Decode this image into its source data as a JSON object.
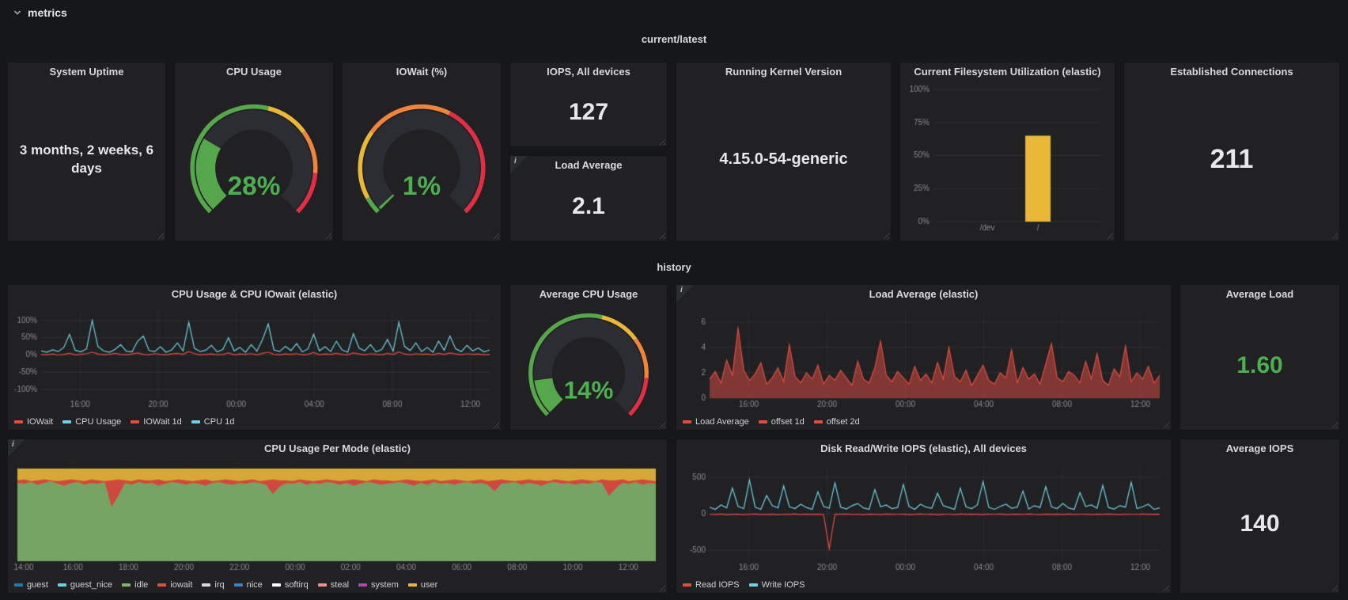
{
  "header": {
    "label": "metrics"
  },
  "sections": {
    "current": "current/latest",
    "history": "history"
  },
  "icons": {
    "info": "i"
  },
  "colors": {
    "background": "#161719",
    "panel": "#212124",
    "title": "#d8d9da",
    "stat": "#e8e8ea",
    "green": "#4CAF50",
    "gauge_green": "#56A64B",
    "yellow": "#EAB839",
    "orange": "#EF843C",
    "red": "#E02F44",
    "graph_red": "#E24D42",
    "graph_blue": "#6ED0E0"
  },
  "panels": {
    "uptime": {
      "title": "System Uptime",
      "value": "3 months, 2 weeks, 6 days"
    },
    "cpu_gauge": {
      "title": "CPU Usage"
    },
    "iowait_gauge": {
      "title": "IOWait (%)"
    },
    "iops": {
      "title": "IOPS, All devices",
      "value": "127"
    },
    "load_avg": {
      "title": "Load Average",
      "value": "2.1"
    },
    "kernel": {
      "title": "Running Kernel Version",
      "value": "4.15.0-54-generic"
    },
    "fs_util": {
      "title": "Current Filesystem Utilization (elastic)"
    },
    "connections": {
      "title": "Established Connections",
      "value": "211"
    },
    "cpu_history": {
      "title": "CPU Usage & CPU IOwait (elastic)"
    },
    "avg_cpu_gauge": {
      "title": "Average CPU Usage"
    },
    "load_history": {
      "title": "Load Average (elastic)"
    },
    "avg_load": {
      "title": "Average Load",
      "value": "1.60"
    },
    "cpu_mode": {
      "title": "CPU Usage Per Mode (elastic)"
    },
    "disk_iops": {
      "title": "Disk Read/Write IOPS (elastic), All devices"
    },
    "avg_iops": {
      "title": "Average IOPS",
      "value": "140"
    }
  },
  "gauges": {
    "cpu": {
      "value": 28,
      "display": "28%",
      "min": 0,
      "max": 100,
      "segments": [
        {
          "to": 0.55,
          "color": "#56A64B"
        },
        {
          "to": 0.7,
          "color": "#EAB839"
        },
        {
          "to": 0.85,
          "color": "#EF843C"
        },
        {
          "to": 1,
          "color": "#E02F44"
        }
      ]
    },
    "iowait": {
      "value": 1,
      "display": "1%",
      "min": 0,
      "max": 100,
      "segments": [
        {
          "to": 0.06,
          "color": "#56A64B"
        },
        {
          "to": 0.3,
          "color": "#EAB839"
        },
        {
          "to": 0.6,
          "color": "#EF843C"
        },
        {
          "to": 1,
          "color": "#E02F44"
        }
      ]
    },
    "avg_cpu": {
      "value": 14,
      "display": "14%",
      "min": 0,
      "max": 100,
      "segments": [
        {
          "to": 0.55,
          "color": "#56A64B"
        },
        {
          "to": 0.7,
          "color": "#EAB839"
        },
        {
          "to": 0.85,
          "color": "#EF843C"
        },
        {
          "to": 1,
          "color": "#E02F44"
        }
      ]
    }
  },
  "chart_data": {
    "fs_util": {
      "type": "bar",
      "title": "Current Filesystem Utilization (elastic)",
      "categories": [
        "/dev",
        "/"
      ],
      "values": [
        0,
        65
      ],
      "cat_pos": [
        0.32,
        0.62
      ],
      "y_ticks": [
        "0%",
        "25%",
        "50%",
        "75%",
        "100%"
      ],
      "y_tick_values": [
        0,
        25,
        50,
        75,
        100
      ],
      "ylim": [
        0,
        100
      ],
      "bar_color": "#EAB839"
    },
    "cpu_history": {
      "type": "line",
      "title": "CPU Usage & CPU IOwait (elastic)",
      "x_ticks": [
        "16:00",
        "20:00",
        "00:00",
        "04:00",
        "08:00",
        "12:00"
      ],
      "x_tick_pos": [
        0.087,
        0.261,
        0.435,
        0.609,
        0.783,
        0.957
      ],
      "y_ticks": [
        "100%",
        "50%",
        "0%",
        "-50%",
        "-100%"
      ],
      "y_tick_values": [
        100,
        50,
        0,
        -50,
        -100
      ],
      "ylim": [
        -125,
        125
      ],
      "series": [
        {
          "name": "IOWait",
          "color": "#E24D42",
          "fill": 0,
          "values": [
            2,
            1,
            3,
            0,
            2,
            5,
            1,
            2,
            4,
            8,
            3,
            1,
            2,
            5,
            2,
            1,
            3,
            6,
            2,
            1,
            4,
            2,
            1,
            3,
            5,
            2,
            10,
            4,
            1,
            2,
            3,
            1,
            2,
            6,
            1,
            3,
            2,
            4,
            1,
            5,
            8,
            2,
            1,
            3,
            2,
            4,
            1,
            2,
            7,
            1,
            3,
            2,
            5,
            2,
            1,
            6,
            3,
            1,
            4,
            2,
            1,
            5,
            2,
            9,
            3,
            1,
            4,
            2,
            3,
            1,
            5,
            2,
            6,
            3,
            1,
            4,
            2,
            3,
            1,
            2
          ]
        },
        {
          "name": "CPU Usage",
          "color": "#6ED0E0",
          "fill": 0,
          "values": [
            12,
            8,
            15,
            10,
            22,
            60,
            14,
            9,
            18,
            100,
            25,
            12,
            8,
            16,
            30,
            11,
            9,
            40,
            55,
            13,
            10,
            24,
            8,
            15,
            35,
            12,
            95,
            20,
            10,
            14,
            28,
            9,
            16,
            50,
            12,
            22,
            8,
            30,
            11,
            45,
            90,
            15,
            10,
            25,
            13,
            33,
            9,
            18,
            60,
            12,
            24,
            10,
            40,
            15,
            8,
            62,
            20,
            12,
            30,
            9,
            16,
            45,
            11,
            95,
            25,
            13,
            35,
            10,
            22,
            8,
            40,
            14,
            55,
            18,
            10,
            28,
            12,
            20,
            9,
            15
          ]
        }
      ],
      "legend": [
        {
          "label": "IOWait",
          "color": "#E24D42"
        },
        {
          "label": "CPU Usage",
          "color": "#6ED0E0"
        },
        {
          "label": "IOWait 1d",
          "color": "#E24D42"
        },
        {
          "label": "CPU 1d",
          "color": "#6ED0E0"
        }
      ]
    },
    "load_history": {
      "type": "area",
      "title": "Load Average (elastic)",
      "x_ticks": [
        "16:00",
        "20:00",
        "00:00",
        "04:00",
        "08:00",
        "12:00"
      ],
      "x_tick_pos": [
        0.087,
        0.261,
        0.435,
        0.609,
        0.783,
        0.957
      ],
      "y_ticks": [
        "0",
        "2",
        "4",
        "6"
      ],
      "y_tick_values": [
        0,
        2,
        4,
        6
      ],
      "ylim": [
        0,
        6.8
      ],
      "series": [
        {
          "name": "Load Average",
          "color": "#E24D42",
          "fill": 0.5,
          "values": [
            1.5,
            2.1,
            1.2,
            3.0,
            1.8,
            5.5,
            2.2,
            1.4,
            1.9,
            2.8,
            1.1,
            1.6,
            2.4,
            1.3,
            4.2,
            1.7,
            1.2,
            2.0,
            1.5,
            2.6,
            1.1,
            1.8,
            1.4,
            2.2,
            1.6,
            1.0,
            2.9,
            1.5,
            1.2,
            2.4,
            4.5,
            1.8,
            1.3,
            2.1,
            1.6,
            1.1,
            2.5,
            1.4,
            1.9,
            1.2,
            2.8,
            1.5,
            4.0,
            1.7,
            1.3,
            2.2,
            1.0,
            1.8,
            2.6,
            1.4,
            1.1,
            2.0,
            1.6,
            3.8,
            1.2,
            2.4,
            1.5,
            1.9,
            1.1,
            2.7,
            4.3,
            1.6,
            1.3,
            2.1,
            1.8,
            1.2,
            2.9,
            1.5,
            3.5,
            1.4,
            1.0,
            2.3,
            1.7,
            4.1,
            1.3,
            2.0,
            1.5,
            2.5,
            1.2,
            1.8
          ]
        }
      ],
      "legend": [
        {
          "label": "Load Average",
          "color": "#E24D42"
        },
        {
          "label": "offset 1d",
          "color": "#E24D42"
        },
        {
          "label": "offset 2d",
          "color": "#E24D42"
        }
      ]
    },
    "cpu_mode": {
      "type": "area",
      "stacked": true,
      "title": "CPU Usage Per Mode (elastic)",
      "x_ticks": [
        "14:00",
        "16:00",
        "18:00",
        "20:00",
        "22:00",
        "00:00",
        "02:00",
        "04:00",
        "06:00",
        "08:00",
        "10:00",
        "12:00"
      ],
      "x_tick_pos": [
        0.01,
        0.087,
        0.174,
        0.261,
        0.348,
        0.435,
        0.522,
        0.609,
        0.696,
        0.783,
        0.87,
        0.957
      ],
      "y_ticks": [],
      "y_tick_values": [],
      "ylim": [
        0,
        102
      ],
      "series": [
        {
          "name": "idle",
          "color": "#7EB26D",
          "values": [
            84,
            83,
            85,
            82,
            84,
            86,
            83,
            81,
            84,
            85,
            82,
            84,
            83,
            85,
            58,
            70,
            84,
            82,
            85,
            83,
            84,
            81,
            83,
            85,
            84,
            82,
            84,
            83,
            81,
            84,
            85,
            83,
            82,
            84,
            83,
            85,
            84,
            82,
            72,
            80,
            84,
            83,
            85,
            82,
            84,
            83,
            85,
            84,
            82,
            84,
            81,
            83,
            85,
            84,
            82,
            83,
            84,
            85,
            83,
            81,
            84,
            82,
            85,
            83,
            84,
            82,
            84,
            85,
            83,
            84,
            82,
            75,
            83,
            84,
            85,
            82,
            84,
            83,
            81,
            84,
            85,
            83,
            84,
            82,
            84,
            83,
            85,
            84,
            70,
            78,
            84,
            83,
            85,
            82,
            84,
            83
          ]
        },
        {
          "name": "system",
          "color": "#E24D42",
          "values": [
            3,
            5,
            1,
            5,
            4,
            1,
            3,
            6,
            4,
            2,
            4,
            4,
            4,
            1,
            29,
            18,
            3,
            4,
            3,
            4,
            3,
            7,
            3,
            2,
            4,
            5,
            2,
            4,
            7,
            2,
            2,
            5,
            5,
            2,
            4,
            3,
            2,
            5,
            16,
            7,
            3,
            3,
            3,
            5,
            2,
            4,
            3,
            3,
            4,
            3,
            7,
            4,
            1,
            4,
            5,
            4,
            2,
            2,
            5,
            6,
            2,
            5,
            3,
            3,
            3,
            6,
            3,
            1,
            4,
            4,
            4,
            12,
            5,
            3,
            1,
            5,
            4,
            4,
            6,
            2,
            3,
            4,
            2,
            5,
            4,
            4,
            1,
            4,
            17,
            9,
            4,
            3,
            2,
            6,
            3,
            3
          ]
        },
        {
          "name": "user",
          "color": "#EAB839",
          "values": [
            12,
            11,
            13,
            12,
            11,
            12,
            13,
            12,
            11,
            12,
            13,
            11,
            12,
            13,
            12,
            11,
            12,
            13,
            11,
            12,
            12,
            11,
            13,
            12,
            11,
            12,
            13,
            12,
            11,
            13,
            12,
            11,
            12,
            13,
            12,
            11,
            13,
            12,
            11,
            12,
            12,
            13,
            11,
            12,
            13,
            12,
            11,
            12,
            13,
            12,
            11,
            12,
            13,
            11,
            12,
            12,
            13,
            12,
            11,
            12,
            13,
            12,
            11,
            13,
            12,
            11,
            12,
            13,
            12,
            11,
            13,
            12,
            11,
            12,
            13,
            12,
            11,
            12,
            12,
            13,
            11,
            12,
            13,
            12,
            11,
            12,
            13,
            11,
            12,
            12,
            11,
            13,
            12,
            11,
            12,
            13
          ]
        }
      ],
      "legend": [
        {
          "label": "guest",
          "color": "#1F78C1"
        },
        {
          "label": "guest_nice",
          "color": "#6ED0E0"
        },
        {
          "label": "idle",
          "color": "#7EB26D"
        },
        {
          "label": "iowait",
          "color": "#E24D42"
        },
        {
          "label": "irq",
          "color": "#D8D9DA"
        },
        {
          "label": "nice",
          "color": "#447EBC"
        },
        {
          "label": "softirq",
          "color": "#FFFFFF"
        },
        {
          "label": "steal",
          "color": "#F29191"
        },
        {
          "label": "system",
          "color": "#BA43A9"
        },
        {
          "label": "user",
          "color": "#EAB839"
        }
      ]
    },
    "disk_iops": {
      "type": "line",
      "title": "Disk Read/Write IOPS (elastic), All devices",
      "x_ticks": [
        "16:00",
        "20:00",
        "00:00",
        "04:00",
        "08:00",
        "12:00"
      ],
      "x_tick_pos": [
        0.087,
        0.261,
        0.435,
        0.609,
        0.783,
        0.957
      ],
      "y_ticks": [
        "500",
        "0",
        "-500"
      ],
      "y_tick_values": [
        500,
        0,
        -500
      ],
      "ylim": [
        -650,
        650
      ],
      "series": [
        {
          "name": "Read IOPS",
          "color": "#E24D42",
          "fill": 0,
          "values": [
            -8,
            -12,
            -5,
            -15,
            -10,
            -6,
            -14,
            -8,
            -5,
            -12,
            -9,
            -6,
            -15,
            -8,
            -10,
            -5,
            -13,
            -7,
            -9,
            -6,
            -11,
            -480,
            -10,
            -7,
            -5,
            -12,
            -8,
            -14,
            -6,
            -9,
            -12,
            -5,
            -10,
            -8,
            -6,
            -13,
            -9,
            -5,
            -11,
            -7,
            -14,
            -6,
            -8,
            -12,
            -5,
            -10,
            -7,
            -9,
            -13,
            -6,
            -8,
            -5,
            -12,
            -9,
            -7,
            -11,
            -5,
            -8,
            -14,
            -6,
            -10,
            -7,
            -12,
            -5,
            -9,
            -8,
            -6,
            -13,
            -7,
            -10,
            -5,
            -9,
            -12,
            -6,
            -8,
            -11,
            -5,
            -10,
            -7,
            -9
          ]
        },
        {
          "name": "Write IOPS",
          "color": "#6ED0E0",
          "fill": 0,
          "values": [
            90,
            60,
            120,
            80,
            350,
            100,
            70,
            460,
            90,
            60,
            250,
            110,
            80,
            380,
            95,
            70,
            130,
            85,
            60,
            300,
            100,
            75,
            420,
            90,
            65,
            110,
            140,
            80,
            60,
            330,
            95,
            120,
            70,
            85,
            400,
            100,
            60,
            130,
            90,
            75,
            280,
            110,
            85,
            60,
            350,
            95,
            70,
            120,
            440,
            85,
            60,
            100,
            130,
            75,
            90,
            310,
            65,
            110,
            85,
            370,
            95,
            70,
            140,
            80,
            60,
            290,
            100,
            120,
            75,
            390,
            85,
            65,
            110,
            90,
            430,
            70,
            95,
            130,
            60,
            80
          ]
        }
      ],
      "legend": [
        {
          "label": "Read IOPS",
          "color": "#E24D42"
        },
        {
          "label": "Write IOPS",
          "color": "#6ED0E0"
        }
      ]
    }
  }
}
